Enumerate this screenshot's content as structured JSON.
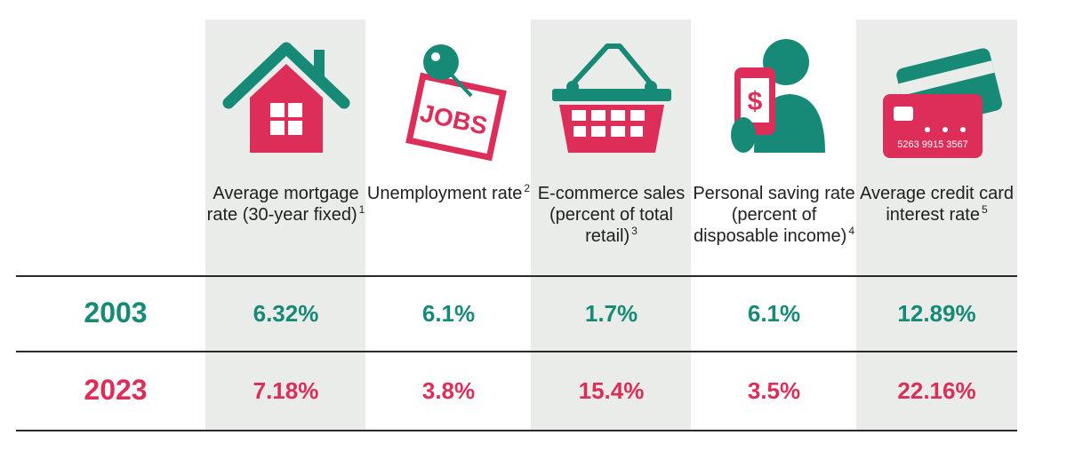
{
  "chart_data": {
    "type": "table",
    "columns": [
      {
        "label": "Average mortgage rate (30-year fixed)",
        "note": "1",
        "icon": "house-icon"
      },
      {
        "label": "Unemployment rate",
        "note": "2",
        "icon": "jobs-sign-icon"
      },
      {
        "label": "E-commerce sales (percent of total retail)",
        "note": "3",
        "icon": "shopping-basket-icon"
      },
      {
        "label": "Personal saving rate (percent of disposable income)",
        "note": "4",
        "icon": "person-phone-dollar-icon"
      },
      {
        "label": "Average credit card interest rate",
        "note": "5",
        "icon": "credit-cards-icon"
      }
    ],
    "rows": [
      {
        "year": "2003",
        "values": [
          "6.32%",
          "6.1%",
          "1.7%",
          "6.1%",
          "12.89%"
        ]
      },
      {
        "year": "2023",
        "values": [
          "7.18%",
          "3.8%",
          "15.4%",
          "3.5%",
          "22.16%"
        ]
      }
    ]
  },
  "icon_text": {
    "jobs_sign": "JOBS",
    "card_number": "5263 9915 3567",
    "phone_symbol": "$"
  },
  "colors": {
    "teal": "#178a77",
    "pink": "#dc2e58",
    "shade": "#e9ece8",
    "rule": "#2a2a2a"
  }
}
